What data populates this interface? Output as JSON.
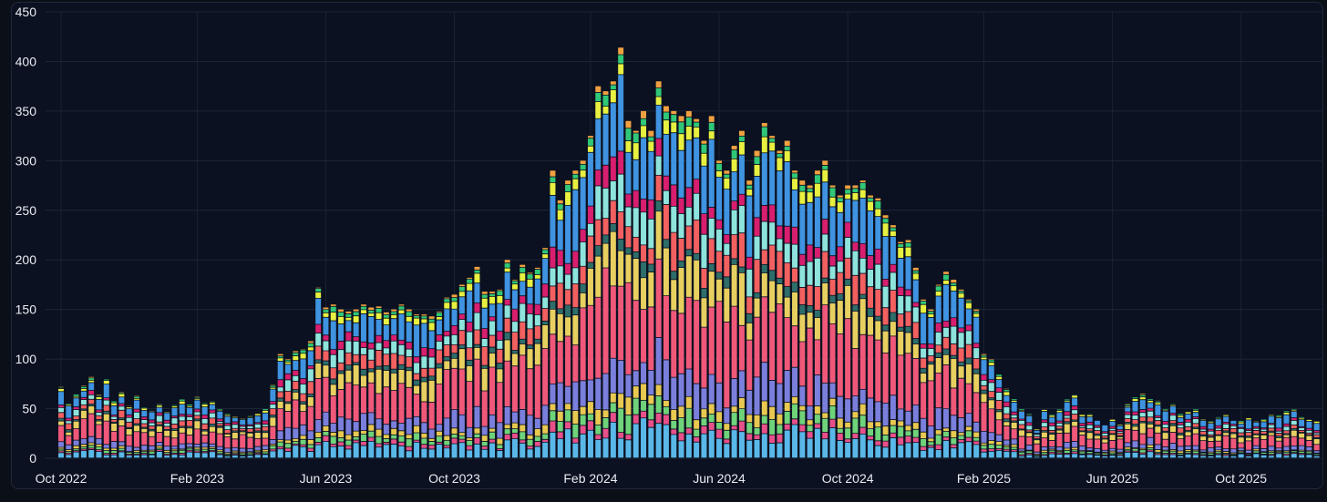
{
  "chart_data": {
    "type": "bar",
    "stacked": true,
    "title": "",
    "xlabel": "",
    "ylabel": "",
    "ylim": [
      0,
      450
    ],
    "yticks": [
      0,
      50,
      100,
      150,
      200,
      250,
      300,
      350,
      400,
      450
    ],
    "xtick_labels": [
      "Oct 2022",
      "Feb 2023",
      "Jun 2023",
      "Oct 2023",
      "Feb 2024",
      "Jun 2024",
      "Oct 2024",
      "Feb 2025",
      "Jun 2025",
      "Oct 2025"
    ],
    "xtick_bar_index": [
      0,
      18,
      35,
      52,
      70,
      87,
      104,
      122,
      139,
      156
    ],
    "grid": true,
    "legend": "none",
    "series_colors": [
      "#5ab8e8",
      "#e8508a",
      "#6fd37a",
      "#e8c850",
      "#7b7fdc",
      "#f0587a",
      "#e8d060",
      "#2e6e6a",
      "#f26060",
      "#8ee4dc",
      "#d81e6e",
      "#3f93e0",
      "#e8f040",
      "#30c878",
      "#f0a040"
    ],
    "series_shares": [
      0.08,
      0.025,
      0.04,
      0.035,
      0.09,
      0.24,
      0.11,
      0.03,
      0.08,
      0.08,
      0.05,
      0.16,
      0.04,
      0.025,
      0.015
    ],
    "totals": [
      72,
      56,
      65,
      73,
      82,
      64,
      80,
      58,
      67,
      53,
      63,
      52,
      49,
      55,
      48,
      54,
      60,
      55,
      62,
      56,
      58,
      50,
      45,
      43,
      41,
      43,
      46,
      50,
      74,
      105,
      100,
      108,
      110,
      118,
      172,
      152,
      155,
      150,
      148,
      150,
      155,
      152,
      153,
      147,
      150,
      155,
      150,
      145,
      145,
      143,
      148,
      162,
      165,
      175,
      182,
      193,
      168,
      168,
      170,
      200,
      180,
      195,
      187,
      192,
      212,
      290,
      260,
      280,
      290,
      300,
      325,
      375,
      370,
      380,
      414,
      340,
      330,
      350,
      330,
      380,
      355,
      350,
      345,
      350,
      342,
      320,
      345,
      300,
      290,
      315,
      330,
      280,
      310,
      338,
      325,
      310,
      320,
      290,
      280,
      275,
      290,
      300,
      275,
      265,
      275,
      275,
      280,
      265,
      262,
      245,
      235,
      218,
      220,
      192,
      160,
      150,
      175,
      188,
      180,
      170,
      160,
      150,
      105,
      100,
      85,
      70,
      60,
      50,
      45,
      30,
      50,
      45,
      50,
      60,
      65,
      45,
      45,
      40,
      35,
      40,
      35,
      55,
      62,
      65,
      60,
      58,
      50,
      55,
      45,
      48,
      50,
      40,
      38,
      42,
      45,
      40,
      38,
      42,
      38,
      40,
      45,
      44,
      48,
      50,
      42,
      40,
      38
    ]
  }
}
